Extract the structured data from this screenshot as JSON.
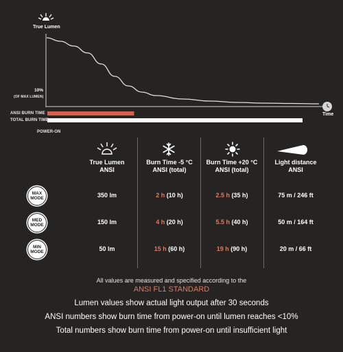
{
  "chart": {
    "y_axis_label": "True Lumen",
    "x_axis_label": "Time",
    "tick_10": "10%",
    "tick_10_sub": "(OF MAX LUMEN)",
    "ansi_burn_label": "ANSI BURN TIME",
    "total_burn_label": "TOTAL BURN TIME",
    "power_on_label": "POWER-ON",
    "colors": {
      "ansi_bar": "#d9604a",
      "total_bar": "#ffffff",
      "curve": "#e0e0e0"
    }
  },
  "chart_data": {
    "type": "line",
    "x": [
      0,
      0.05,
      0.1,
      0.15,
      0.2,
      0.25,
      0.3,
      0.35,
      0.4,
      0.5,
      0.6,
      0.7,
      0.8,
      0.9,
      1.0
    ],
    "y": [
      1.0,
      0.95,
      0.88,
      0.78,
      0.62,
      0.44,
      0.3,
      0.21,
      0.16,
      0.11,
      0.08,
      0.06,
      0.05,
      0.045,
      0.04
    ],
    "xlabel": "Time",
    "ylabel": "True Lumen",
    "ansi_burn_fraction": 0.34,
    "total_burn_fraction": 1.0
  },
  "table": {
    "columns": [
      {
        "label": "True Lumen ANSI",
        "icon": "sun-outline-icon"
      },
      {
        "label": "Burn Time -5 °C ANSI  (total)",
        "icon": "snowflake-icon"
      },
      {
        "label": "Burn Time +20 °C ANSI  (total)",
        "icon": "sun-icon"
      },
      {
        "label": "Light distance ANSI",
        "icon": "beam-icon"
      }
    ],
    "rows": [
      {
        "mode": "MAX MODE",
        "lumen": "350 lm",
        "cold_ansi": "2 h",
        "cold_total": " (10 h)",
        "warm_ansi": "2.5 h",
        "warm_total": " (35 h)",
        "distance": "75 m / 246 ft"
      },
      {
        "mode": "MED MODE",
        "lumen": "150 lm",
        "cold_ansi": "4 h",
        "cold_total": " (20 h)",
        "warm_ansi": "5.5 h",
        "warm_total": " (40 h)",
        "distance": "50 m / 164 ft"
      },
      {
        "mode": "MIN MODE",
        "lumen": "50 lm",
        "cold_ansi": "15 h",
        "cold_total": " (60 h)",
        "warm_ansi": "19 h",
        "warm_total": " (90 h)",
        "distance": "20 m / 66 ft"
      }
    ]
  },
  "footer": {
    "line1": "All values are measured and specified according to the",
    "standard": "ANSI FL1 STANDARD",
    "line3": "Lumen values show actual light output after 30 seconds",
    "line4": "ANSI numbers show burn time from power-on until lumen reaches <10%",
    "line5": "Total numbers show burn time from power-on until insufficient light"
  }
}
